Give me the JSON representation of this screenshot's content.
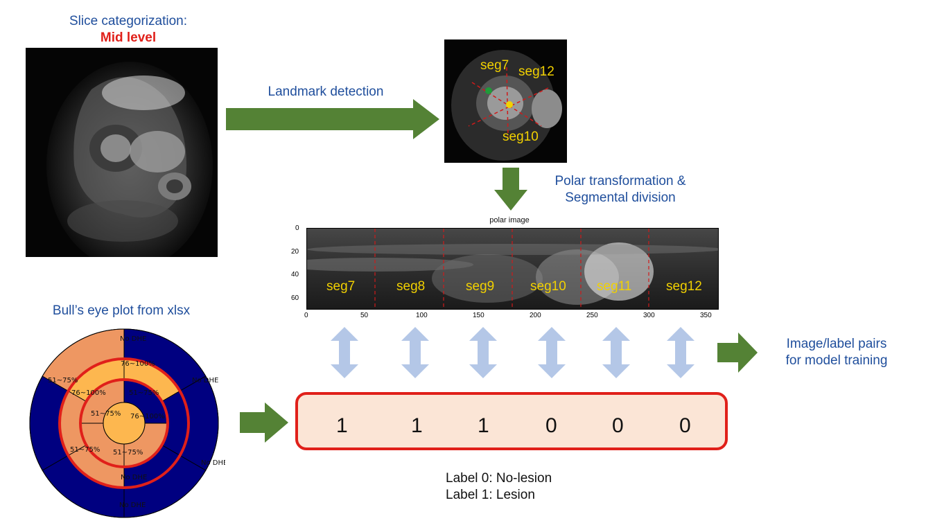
{
  "slice": {
    "caption": "Slice categorization:",
    "level": "Mid level"
  },
  "steps": {
    "landmark": "Landmark detection",
    "polar_line1": "Polar transformation &",
    "polar_line2": "Segmental division",
    "pairs_line1": "Image/label pairs",
    "pairs_line2": "for model training",
    "bullseye": "Bull’s eye plot from xlsx"
  },
  "landmark_image": {
    "labels": [
      "seg7",
      "seg12",
      "seg10"
    ]
  },
  "polar_image": {
    "title": "polar image",
    "x_ticks": [
      "0",
      "50",
      "100",
      "150",
      "200",
      "250",
      "300",
      "350"
    ],
    "y_ticks": [
      "0",
      "20",
      "40",
      "60"
    ],
    "segments": [
      "seg7",
      "seg8",
      "seg9",
      "seg10",
      "seg11",
      "seg12"
    ]
  },
  "labels": {
    "values": [
      "1",
      "1",
      "1",
      "0",
      "0",
      "0"
    ]
  },
  "legend": {
    "line1": "Label 0: No-lesion",
    "line2": "Label 1: Lesion"
  },
  "bullseye": {
    "texts": [
      "No DHE",
      "No DHE",
      "51~75%",
      "76~100%",
      "76~100%",
      "No DHE",
      "No DHE",
      "No DHE",
      "51~75%",
      "76~100%",
      "51~75%",
      "51~75%",
      "51~75%"
    ]
  },
  "colors": {
    "arrow": "#548235",
    "double_arrow": "#b4c7e7",
    "caption": "#1f4e9c",
    "mid_level": "#e0201a",
    "box_fill": "#fbe5d6",
    "box_border": "#e0201a",
    "navy": "#000080",
    "salmon": "#ee9762",
    "amber": "#fdb74f"
  }
}
